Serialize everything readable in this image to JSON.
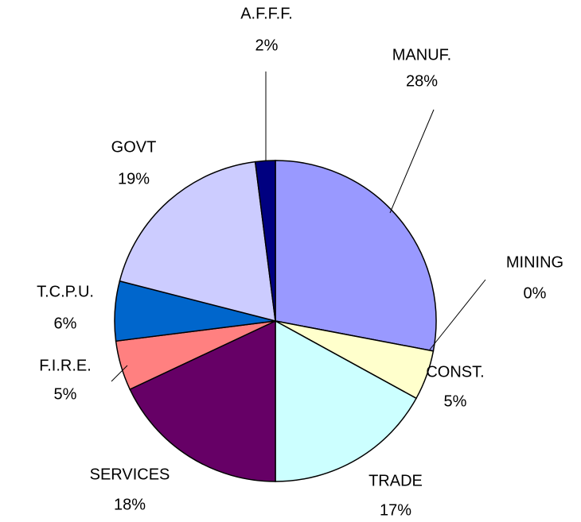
{
  "chart_data": {
    "type": "pie",
    "categories": [
      "MANUF.",
      "MINING",
      "CONST.",
      "TRADE",
      "SERVICES",
      "F.I.R.E.",
      "T.C.P.U.",
      "GOVT",
      "A.F.F.F."
    ],
    "values": [
      28,
      0,
      5,
      17,
      18,
      5,
      6,
      19,
      2
    ],
    "value_labels": [
      "28%",
      "0%",
      "5%",
      "17%",
      "18%",
      "5%",
      "6%",
      "19%",
      "2%"
    ],
    "colors": [
      "#9999ff",
      "#993366",
      "#ffffcc",
      "#ccffff",
      "#660066",
      "#ff8080",
      "#0066cc",
      "#ccccff",
      "#000080"
    ]
  }
}
